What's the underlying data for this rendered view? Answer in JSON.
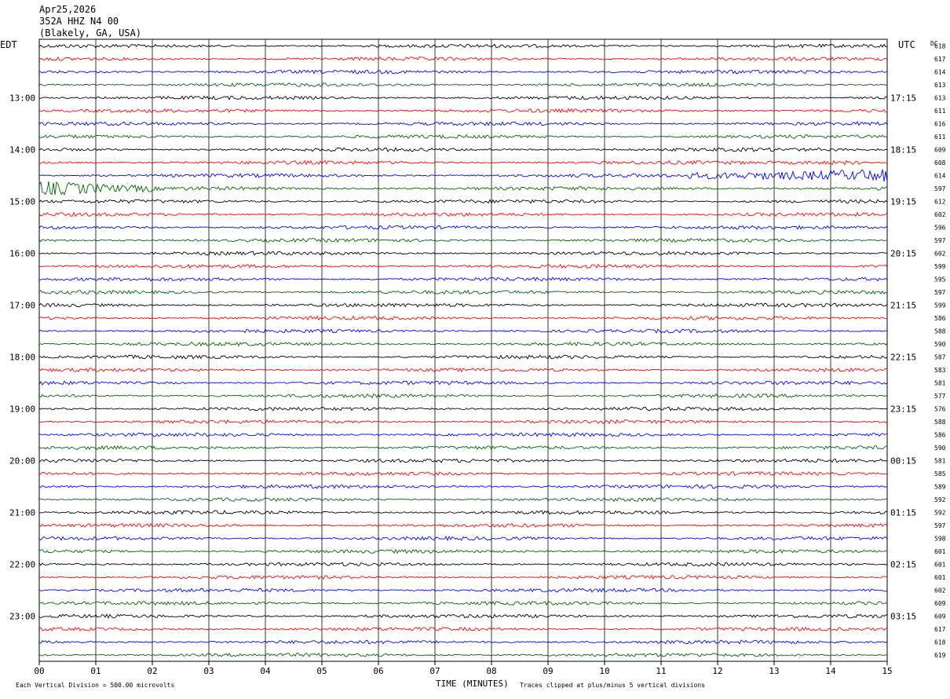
{
  "header": {
    "date": "Apr25,2026",
    "station": "352A HHZ N4 00",
    "location": "(Blakely, GA, USA)"
  },
  "chart_data": {
    "type": "line",
    "title": "352A HHZ N4 00",
    "xlabel": "TIME (MINUTES)",
    "left_axis_label": "EDT",
    "right_axis_label": "UTC",
    "dc_label": "DC",
    "xlim": [
      0,
      15
    ],
    "x_ticks": [
      "00",
      "01",
      "02",
      "03",
      "04",
      "05",
      "06",
      "07",
      "08",
      "09",
      "10",
      "11",
      "12",
      "13",
      "14",
      "15"
    ],
    "grid": true,
    "line_count": 48,
    "colors": [
      "#000000",
      "#ff0000",
      "#0000ff",
      "#006400"
    ],
    "left_hour_labels": [
      {
        "line": 4,
        "text": "13:00"
      },
      {
        "line": 8,
        "text": "14:00"
      },
      {
        "line": 12,
        "text": "15:00"
      },
      {
        "line": 16,
        "text": "16:00"
      },
      {
        "line": 20,
        "text": "17:00"
      },
      {
        "line": 24,
        "text": "18:00"
      },
      {
        "line": 28,
        "text": "19:00"
      },
      {
        "line": 32,
        "text": "20:00"
      },
      {
        "line": 36,
        "text": "21:00"
      },
      {
        "line": 40,
        "text": "22:00"
      },
      {
        "line": 44,
        "text": "23:00"
      }
    ],
    "right_hour_labels": [
      {
        "line": 4,
        "text": "17:15"
      },
      {
        "line": 8,
        "text": "18:15"
      },
      {
        "line": 12,
        "text": "19:15"
      },
      {
        "line": 16,
        "text": "20:15"
      },
      {
        "line": 20,
        "text": "21:15"
      },
      {
        "line": 24,
        "text": "22:15"
      },
      {
        "line": 28,
        "text": "23:15"
      },
      {
        "line": 32,
        "text": "00:15"
      },
      {
        "line": 36,
        "text": "01:15"
      },
      {
        "line": 40,
        "text": "02:15"
      },
      {
        "line": 44,
        "text": "03:15"
      }
    ],
    "dc_offsets": [
      618,
      617,
      614,
      613,
      613,
      611,
      616,
      611,
      609,
      608,
      614,
      597,
      612,
      602,
      596,
      597,
      602,
      599,
      595,
      597,
      599,
      586,
      588,
      590,
      587,
      583,
      581,
      577,
      576,
      588,
      586,
      590,
      581,
      585,
      589,
      592,
      592,
      597,
      598,
      601,
      601,
      601,
      602,
      609,
      609,
      617,
      618,
      619
    ],
    "events": [
      {
        "line": 10,
        "start_min": 11.5,
        "end_min": 15,
        "amp": 8
      },
      {
        "line": 11,
        "start_min": 0,
        "end_min": 2,
        "amp": 9
      },
      {
        "line": 9,
        "start_min": 13.2,
        "end_min": 14.5,
        "amp": 2.5
      }
    ],
    "footer_left": "Each Vertical Division =  500.00 microvolts",
    "footer_right": "Traces clipped at plus/minus 5 vertical divisions"
  }
}
